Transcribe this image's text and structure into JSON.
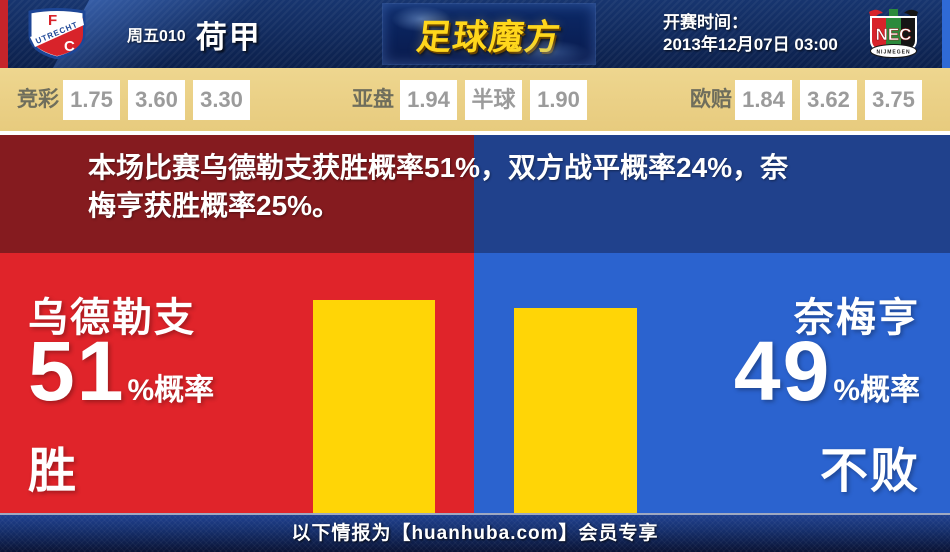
{
  "header": {
    "home_crest": {
      "letter_f": "F",
      "letter_c": "C",
      "banner": "UTRECHT"
    },
    "match_code": "周五010",
    "league": "荷甲",
    "brand": "足球魔方",
    "kickoff_label": "开赛时间：",
    "kickoff_time": "2013年12月07日 03:00",
    "away_crest": {
      "initials": "NEC",
      "banner": "NIJMEGEN"
    }
  },
  "odds": {
    "groups": [
      {
        "label": "竞彩",
        "values": [
          "1.75",
          "3.60",
          "3.30"
        ]
      },
      {
        "label": "亚盘",
        "values": [
          "1.94",
          "半球",
          "1.90"
        ]
      },
      {
        "label": "欧赔",
        "values": [
          "1.84",
          "3.62",
          "3.75"
        ]
      }
    ]
  },
  "summary": {
    "full": "本场比赛乌德勒支获胜概率51%，双方战平概率24%，奈梅亨获胜概率25%。",
    "line1": "本场比赛乌德勒支获胜概率51%，双方战平概率24%，奈",
    "line2": "梅亨获胜概率25%。",
    "home_win_pct": 51,
    "draw_pct": 24,
    "away_win_pct": 25
  },
  "panels": {
    "home": {
      "team": "乌德勒支",
      "probability": 51,
      "prob_suffix": "%概率",
      "outcome": "胜"
    },
    "away": {
      "team": "奈梅亨",
      "probability": 49,
      "prob_suffix": "%概率",
      "outcome": "不败"
    }
  },
  "footer": {
    "text": "以下情报为【huanhuba.com】会员专享"
  },
  "colors": {
    "home_red": "#e0242a",
    "away_blue": "#2b63cf",
    "summary_dark_red": "#851b1f",
    "summary_dark_blue": "#20418c",
    "bar_yellow": "#ffd506",
    "odds_gold": "#e7cb7e",
    "brand_gold": "#ffd71c",
    "header_navy": "#122c60"
  }
}
